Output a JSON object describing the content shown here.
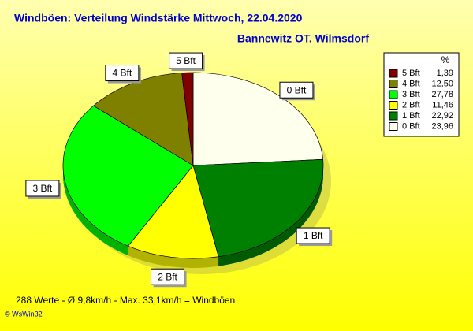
{
  "chart_data": {
    "type": "pie",
    "title": "Windböen: Verteilung Windstärke  Mittwoch, 22.04.2020",
    "subtitle": "Bannewitz OT. Wilmsdorf",
    "legend_title": "%",
    "categories": [
      "5 Bft",
      "4 Bft",
      "3 Bft",
      "2 Bft",
      "1 Bft",
      "0 Bft"
    ],
    "values": [
      1.39,
      12.5,
      27.78,
      11.46,
      22.92,
      23.96
    ],
    "value_labels": [
      "1,39",
      "12,50",
      "27,78",
      "11,46",
      "22,92",
      "23,96"
    ],
    "colors": [
      "#800000",
      "#808000",
      "#00ff00",
      "#ffff00",
      "#008000",
      "#ffffee"
    ],
    "footer": "288 Werte   -   Ø 9,8km/h  -  Max. 33,1km/h = Windböen",
    "copyright": "© WsWin32"
  }
}
